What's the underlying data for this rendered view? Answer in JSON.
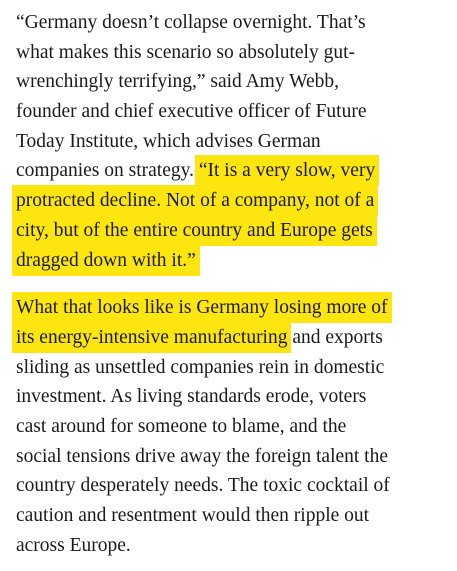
{
  "paragraphs": [
    {
      "lines": [
        {
          "segments": [
            {
              "text": "“Germany doesn’t collapse overnight. That’s",
              "highlighted": false
            }
          ]
        },
        {
          "segments": [
            {
              "text": "what makes this scenario so absolutely gut-",
              "highlighted": false
            }
          ]
        },
        {
          "segments": [
            {
              "text": "wrenchingly terrifying,” said Amy Webb,",
              "highlighted": false
            }
          ]
        },
        {
          "segments": [
            {
              "text": "founder and chief executive officer of Future",
              "highlighted": false
            }
          ]
        },
        {
          "segments": [
            {
              "text": "Today Institute, which advises German",
              "highlighted": false
            }
          ]
        },
        {
          "segments": [
            {
              "text": "companies on strategy. ",
              "highlighted": false
            },
            {
              "text": "“It is a very slow, very",
              "highlighted": true
            }
          ]
        },
        {
          "segments": [
            {
              "text": "protracted decline. Not of a company, not of a",
              "highlighted": true
            }
          ]
        },
        {
          "segments": [
            {
              "text": "city, but of the entire country and Europe gets",
              "highlighted": true
            }
          ]
        },
        {
          "segments": [
            {
              "text": "dragged down with it.”",
              "highlighted": true
            }
          ]
        }
      ]
    },
    {
      "lines": [
        {
          "segments": [
            {
              "text": "What that looks like is Germany losing more of",
              "highlighted": true
            }
          ]
        },
        {
          "segments": [
            {
              "text": "its energy-intensive manufacturing",
              "highlighted": true
            },
            {
              "text": " and exports",
              "highlighted": false
            }
          ]
        },
        {
          "segments": [
            {
              "text": "sliding as unsettled companies rein in domestic",
              "highlighted": false
            }
          ]
        },
        {
          "segments": [
            {
              "text": "investment. As living standards erode, voters",
              "highlighted": false
            }
          ]
        },
        {
          "segments": [
            {
              "text": "cast around for someone to blame, and the",
              "highlighted": false
            }
          ]
        },
        {
          "segments": [
            {
              "text": "social tensions drive away the foreign talent the",
              "highlighted": false
            }
          ]
        },
        {
          "segments": [
            {
              "text": "country desperately needs. The toxic cocktail of",
              "highlighted": false
            }
          ]
        },
        {
          "segments": [
            {
              "text": "caution and resentment would then ripple out",
              "highlighted": false
            }
          ]
        },
        {
          "segments": [
            {
              "text": "across Europe.",
              "highlighted": false
            }
          ]
        }
      ]
    }
  ]
}
